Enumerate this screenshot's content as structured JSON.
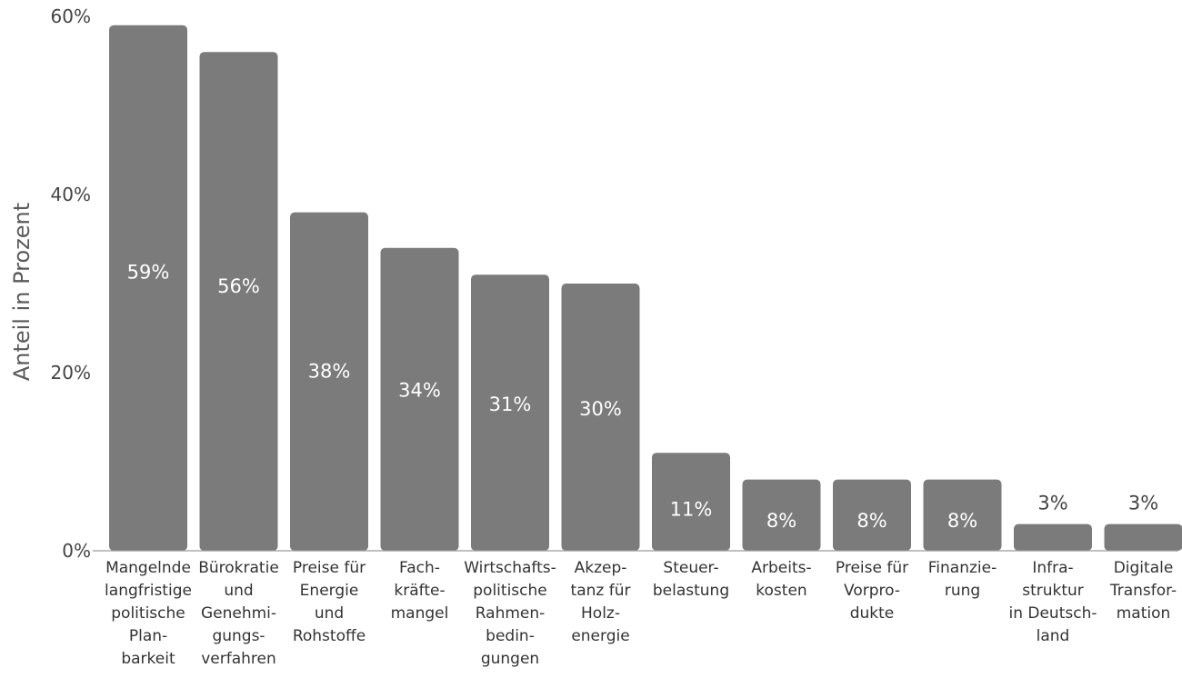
{
  "chart_data": {
    "type": "bar",
    "ylabel": "Anteil in Prozent",
    "ylim": [
      0,
      60
    ],
    "yticks": [
      "0%",
      "20%",
      "40%",
      "60%"
    ],
    "categories": [
      [
        "Mangelnde",
        "langfristige",
        "politische",
        "Plan-",
        "barkeit"
      ],
      [
        "Bürokratie",
        "und",
        "Genehmi-",
        "gungs-",
        "verfahren"
      ],
      [
        "Preise für",
        "Energie",
        "und",
        "Rohstoffe"
      ],
      [
        "Fach-",
        "kräfte-",
        "mangel"
      ],
      [
        "Wirtschafts-",
        "politische",
        "Rahmen-",
        "bedin-",
        "gungen"
      ],
      [
        "Akzep-",
        "tanz für",
        "Holz-",
        "energie"
      ],
      [
        "Steuer-",
        "belastung"
      ],
      [
        "Arbeits-",
        "kosten"
      ],
      [
        "Preise für",
        "Vorpro-",
        "dukte"
      ],
      [
        "Finanzie-",
        "rung"
      ],
      [
        "Infra-",
        "struktur",
        "in Deutsch-",
        "land"
      ],
      [
        "Digitale",
        "Transfor-",
        "mation"
      ]
    ],
    "values": [
      59,
      56,
      38,
      34,
      31,
      30,
      11,
      8,
      8,
      8,
      3,
      3
    ],
    "data_labels": [
      "59%",
      "56%",
      "38%",
      "34%",
      "31%",
      "30%",
      "11%",
      "8%",
      "8%",
      "8%",
      "3%",
      "3%"
    ],
    "colors": {
      "bar": "#7b7b7b",
      "axis": "#9a9a9a",
      "text": "#444444",
      "label_inside": "#ffffff"
    },
    "grid": false,
    "legend": false
  }
}
